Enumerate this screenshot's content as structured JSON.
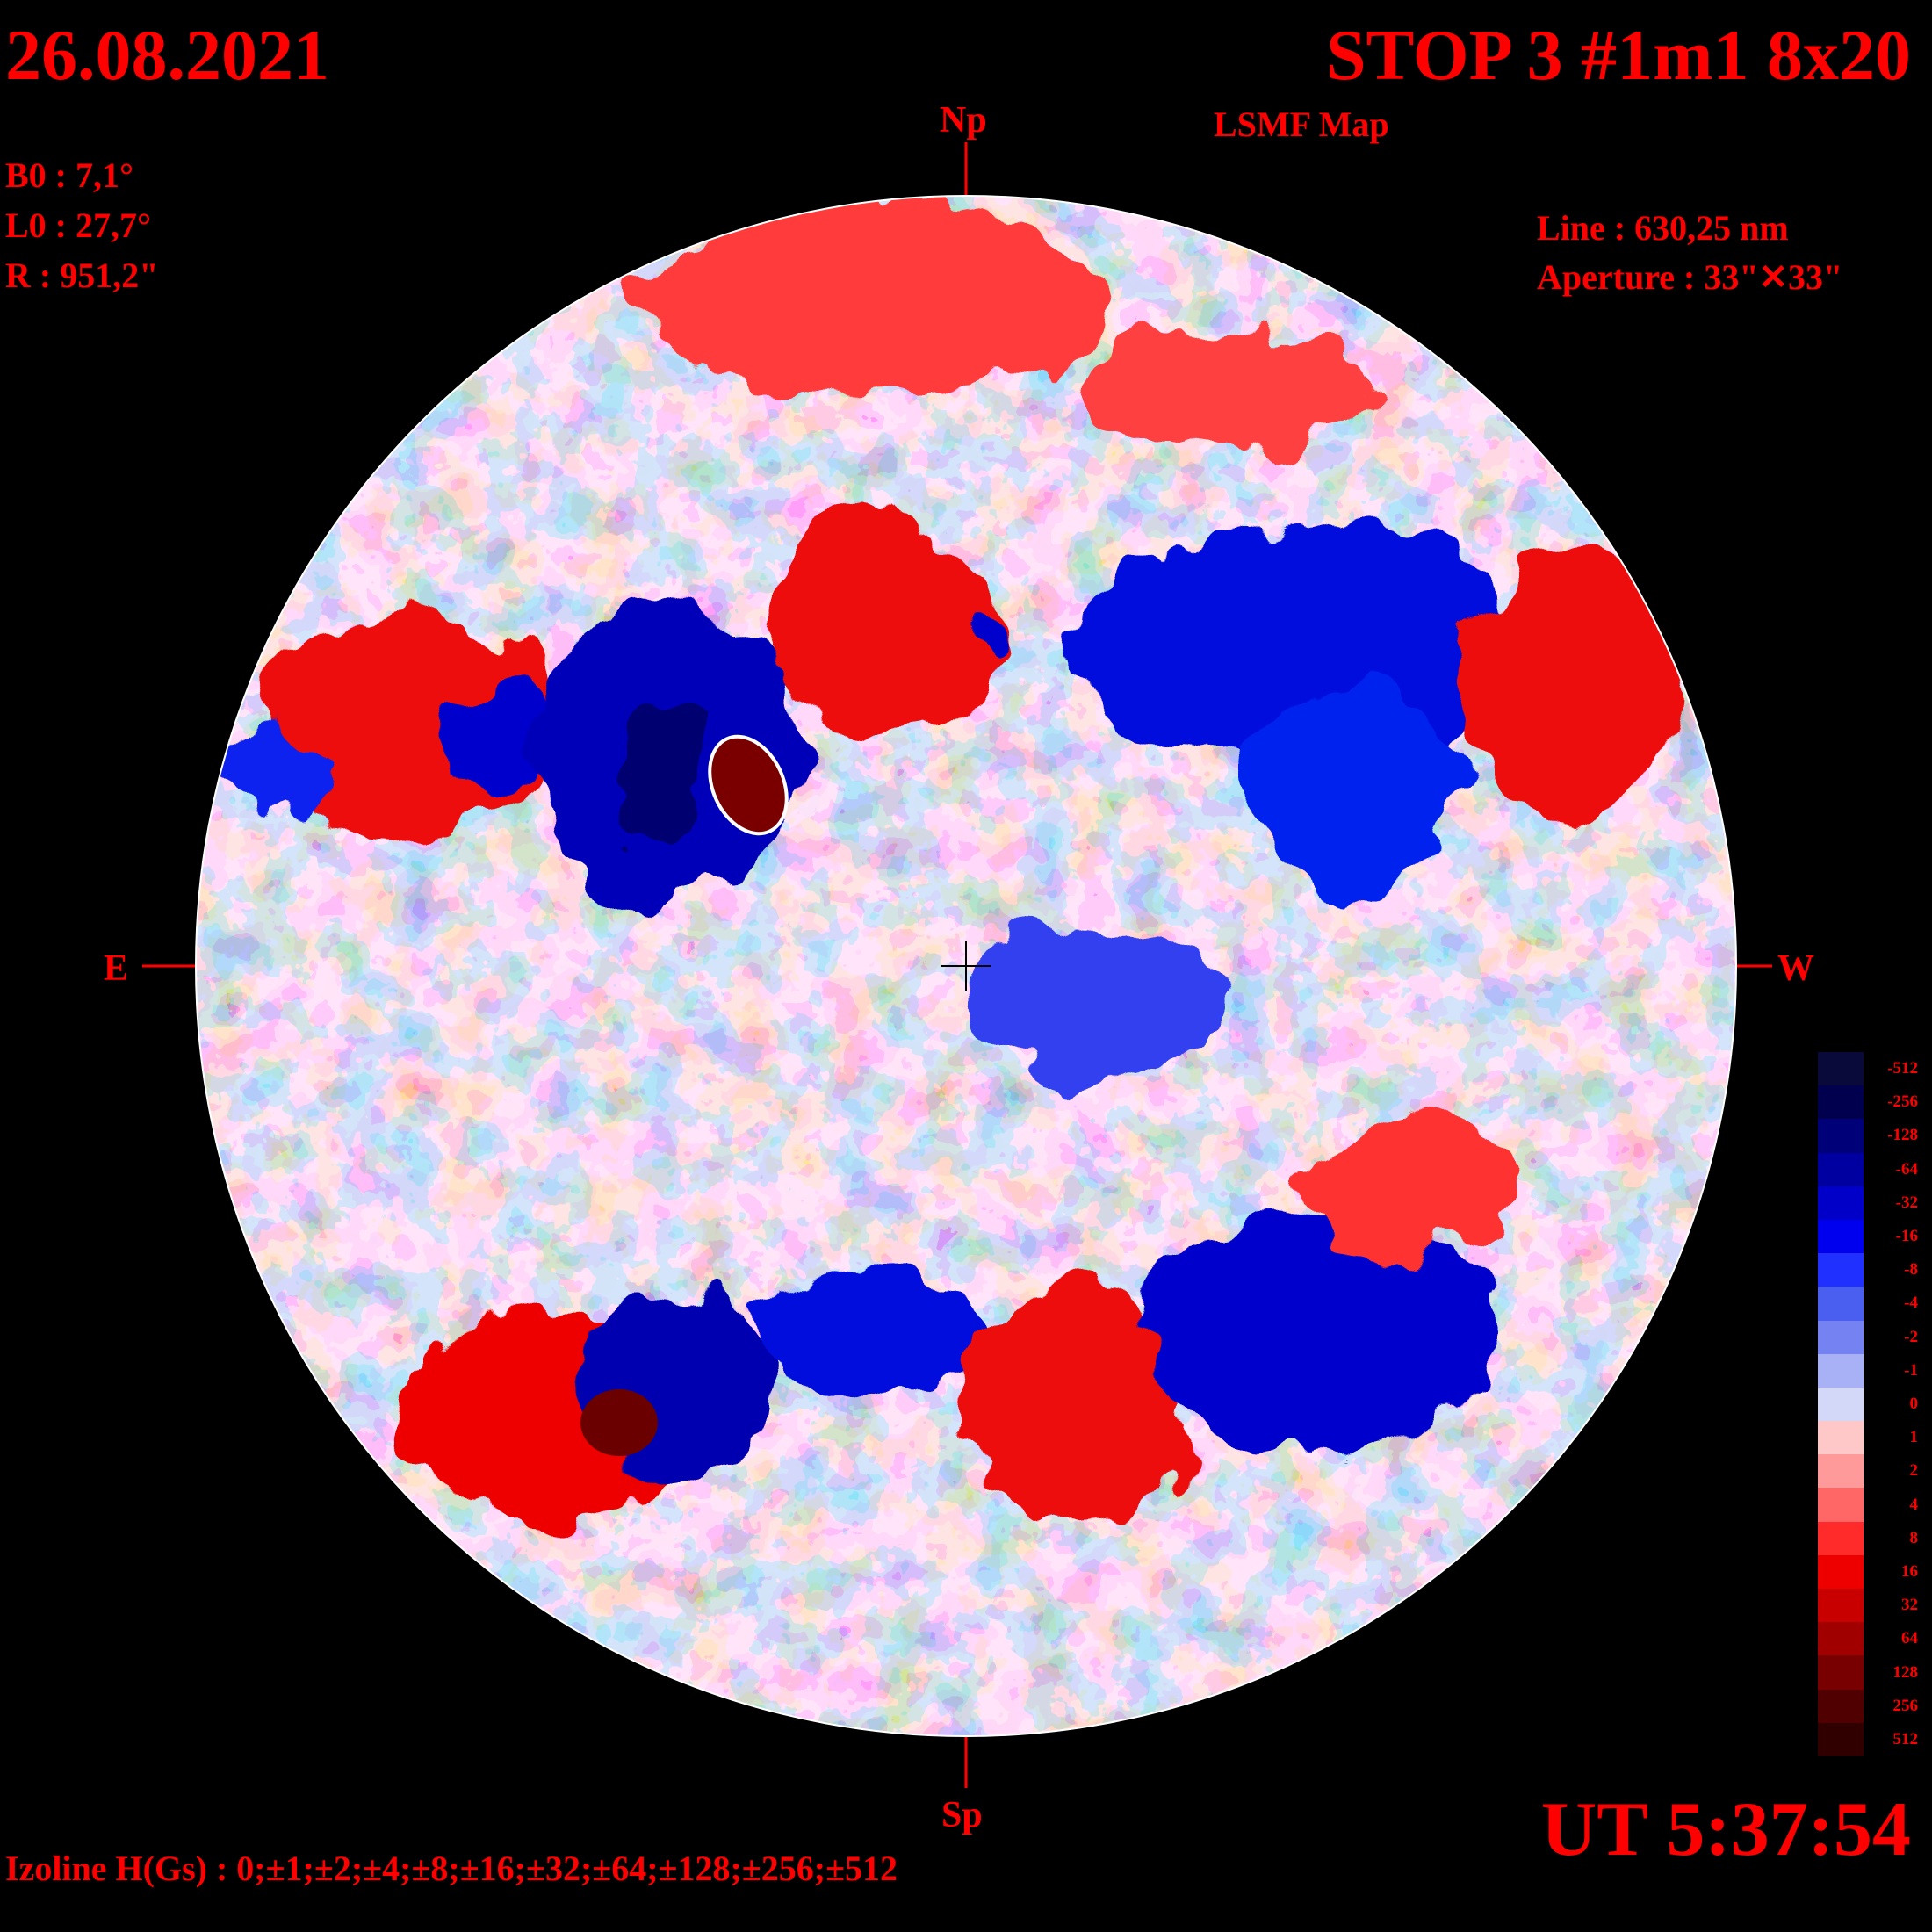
{
  "header": {
    "date": "26.08.2021",
    "title": "STOP 3 #1m1 8x20",
    "subtitle": "LSMF  Map"
  },
  "params": {
    "b0": "B0 : 7,1°",
    "l0": "L0 : 27,7°",
    "r": "R  : 951,2\""
  },
  "instrument": {
    "line": "Line :  630,25 nm",
    "aperture": "Aperture : 33\"✕33\""
  },
  "directions": {
    "north": "Np",
    "south": "Sp",
    "east": "E",
    "west": "W"
  },
  "time": "UT 5:37:54",
  "izoline": "Izoline H(Gs) : 0;±1;±2;±4;±8;±16;±32;±64;±128;±256;±512",
  "colorbar": {
    "levels": [
      {
        "label": "-512",
        "color": "#0a0a3a"
      },
      {
        "label": "-256",
        "color": "#00004e"
      },
      {
        "label": "-128",
        "color": "#000078"
      },
      {
        "label": "-64",
        "color": "#0000a0"
      },
      {
        "label": "-32",
        "color": "#0000c8"
      },
      {
        "label": "-16",
        "color": "#0000ee"
      },
      {
        "label": "-8",
        "color": "#2030ff"
      },
      {
        "label": "-4",
        "color": "#4a5ef0"
      },
      {
        "label": "-2",
        "color": "#7482f2"
      },
      {
        "label": "-1",
        "color": "#a8b0f6"
      },
      {
        "label": "0",
        "color": "#d4d8f8"
      },
      {
        "label": "1",
        "color": "#ffc8c8"
      },
      {
        "label": "2",
        "color": "#ff9a9a"
      },
      {
        "label": "4",
        "color": "#ff6666"
      },
      {
        "label": "8",
        "color": "#ff2a2a"
      },
      {
        "label": "16",
        "color": "#ee0000"
      },
      {
        "label": "32",
        "color": "#c80000"
      },
      {
        "label": "64",
        "color": "#a00000"
      },
      {
        "label": "128",
        "color": "#780000"
      },
      {
        "label": "256",
        "color": "#500000"
      },
      {
        "label": "512",
        "color": "#300000"
      }
    ]
  },
  "colors": {
    "text": "#ff0000",
    "background": "#000000"
  }
}
